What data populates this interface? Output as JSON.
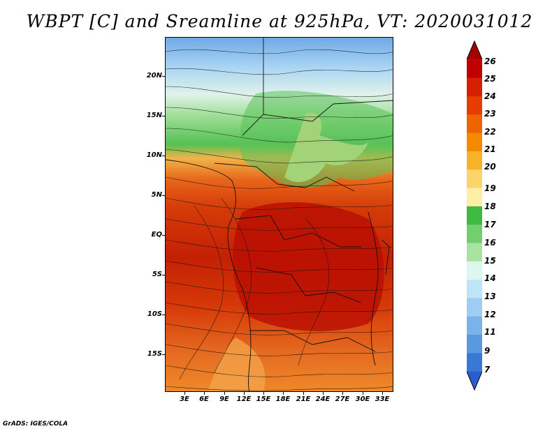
{
  "title": "WBPT [C] and Sreamline at 925hPa, VT: 2020031012",
  "map": {
    "lat_labels": [
      "20N",
      "15N",
      "10N",
      "5N",
      "EQ",
      "5S",
      "10S",
      "15S"
    ],
    "lon_labels": [
      "3E",
      "6E",
      "9E",
      "12E",
      "15E",
      "18E",
      "21E",
      "24E",
      "27E",
      "30E",
      "33E"
    ]
  },
  "colorbar": {
    "labels": [
      "26",
      "25",
      "24",
      "23",
      "22",
      "21",
      "20",
      "19",
      "18",
      "17",
      "16",
      "15",
      "14",
      "13",
      "12",
      "11",
      "9",
      "7"
    ],
    "colors": [
      "#a50000",
      "#c00000",
      "#d72000",
      "#e63c00",
      "#ef6400",
      "#f58a00",
      "#f8b22a",
      "#fbd56b",
      "#fdf0a6",
      "#3fb93f",
      "#73cf6e",
      "#a8e3a0",
      "#dff5f0",
      "#bfe3f7",
      "#9dcdf2",
      "#7ab3ea",
      "#5a98e0",
      "#3a78d6",
      "#2a5ed0"
    ]
  },
  "credit": "GrADS: IGES/COLA"
}
